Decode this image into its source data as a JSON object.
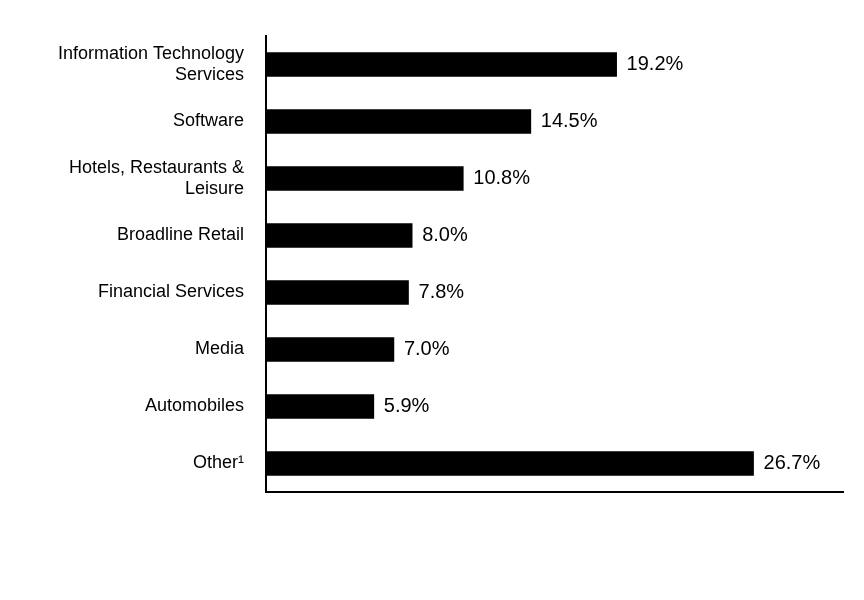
{
  "chart_data": {
    "type": "bar",
    "orientation": "horizontal",
    "categories": [
      "Information Technology Services",
      "Software",
      "Hotels, Restaurants & Leisure",
      "Broadline Retail",
      "Financial Services",
      "Media",
      "Automobiles",
      "Other¹"
    ],
    "values": [
      19.2,
      14.5,
      10.8,
      8.0,
      7.8,
      7.0,
      5.9,
      26.7
    ],
    "value_labels": [
      "19.2%",
      "14.5%",
      "10.8%",
      "8.0%",
      "7.8%",
      "7.0%",
      "5.9%",
      "26.7%"
    ],
    "color": "#000000",
    "xlim": [
      0,
      31.6
    ],
    "grid": false,
    "data_labels": true,
    "tick_labels": "y"
  }
}
